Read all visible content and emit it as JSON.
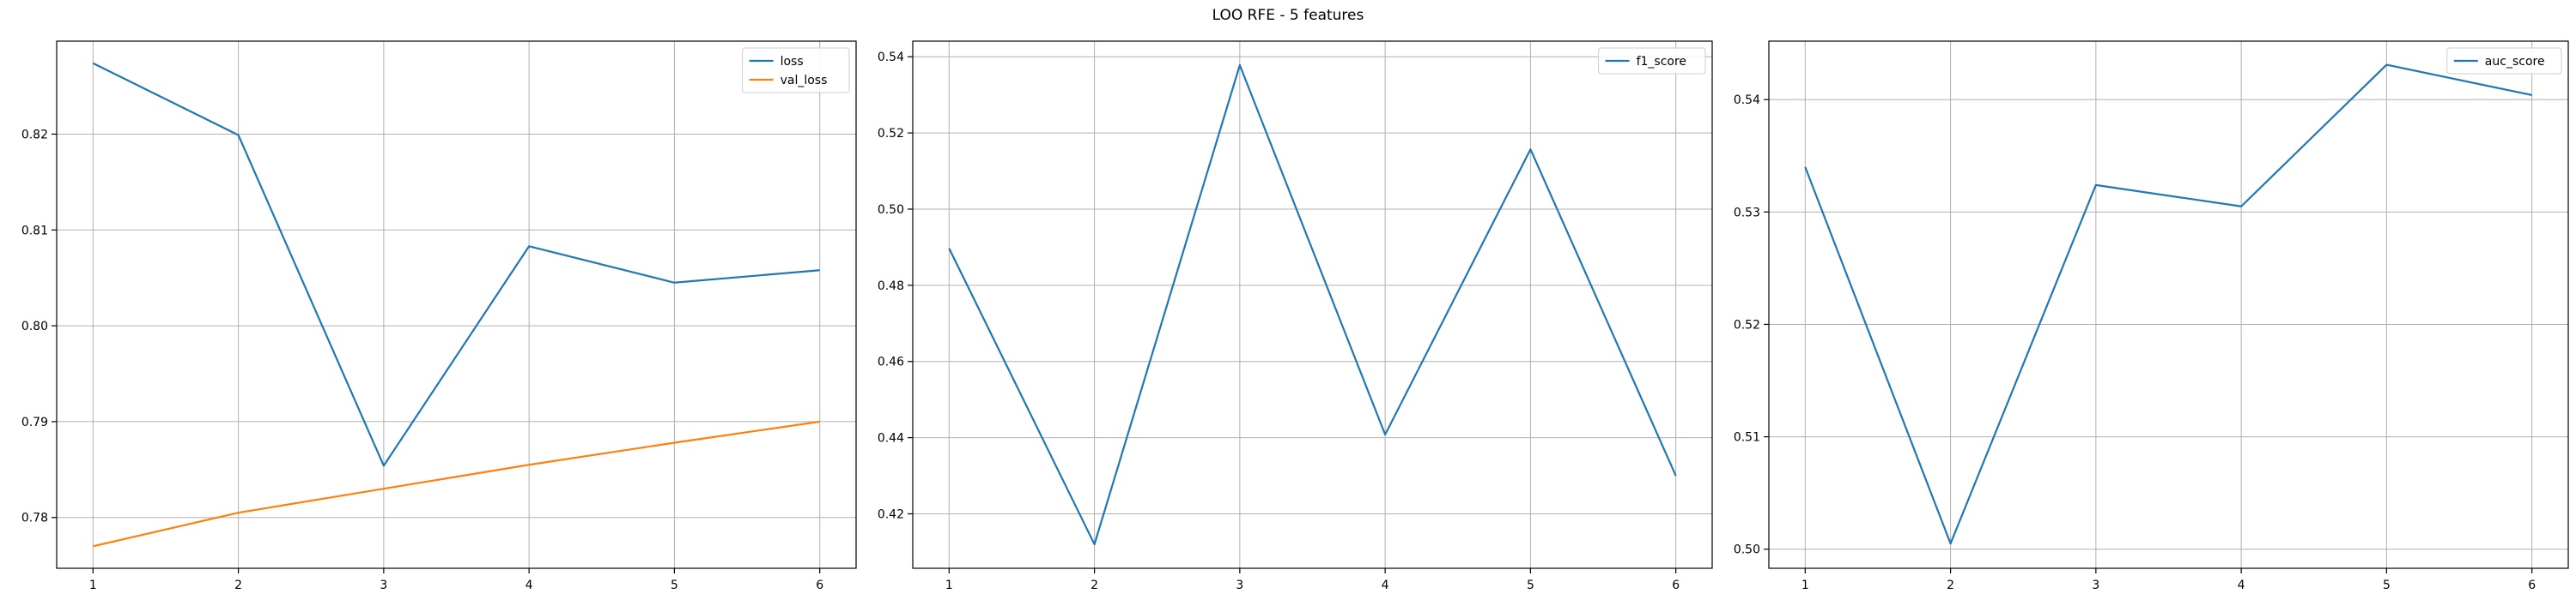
{
  "figure": {
    "title": "LOO RFE - 5 features"
  },
  "chart_data": [
    {
      "type": "line",
      "title": "",
      "xlabel": "",
      "ylabel": "",
      "x": [
        1,
        2,
        3,
        4,
        5,
        6
      ],
      "xticks": [
        1,
        2,
        3,
        4,
        5,
        6
      ],
      "xlim": [
        0.75,
        6.25
      ],
      "ylim": [
        0.7747,
        0.8297
      ],
      "yticks": [
        0.78,
        0.79,
        0.8,
        0.81,
        0.82
      ],
      "ytick_labels": [
        "0.78",
        "0.79",
        "0.80",
        "0.81",
        "0.82"
      ],
      "grid": true,
      "legend": "upper right",
      "series": [
        {
          "name": "loss",
          "color": "#1f77b4",
          "values": [
            0.8274,
            0.8199,
            0.7854,
            0.8083,
            0.8045,
            0.8058
          ]
        },
        {
          "name": "val_loss",
          "color": "#ff7f0e",
          "values": [
            0.777,
            0.7805,
            0.783,
            0.7855,
            0.7878,
            0.79
          ]
        }
      ]
    },
    {
      "type": "line",
      "title": "",
      "xlabel": "",
      "ylabel": "",
      "x": [
        1,
        2,
        3,
        4,
        5,
        6
      ],
      "xticks": [
        1,
        2,
        3,
        4,
        5,
        6
      ],
      "xlim": [
        0.75,
        6.25
      ],
      "ylim": [
        0.4057,
        0.5441
      ],
      "yticks": [
        0.42,
        0.44,
        0.46,
        0.48,
        0.5,
        0.52,
        0.54
      ],
      "ytick_labels": [
        "0.42",
        "0.44",
        "0.46",
        "0.48",
        "0.50",
        "0.52",
        "0.54"
      ],
      "grid": true,
      "legend": "upper right",
      "series": [
        {
          "name": "f1_score",
          "color": "#1f77b4",
          "values": [
            0.4897,
            0.412,
            0.5378,
            0.4408,
            0.5157,
            0.43
          ]
        }
      ]
    },
    {
      "type": "line",
      "title": "",
      "xlabel": "",
      "ylabel": "",
      "x": [
        1,
        2,
        3,
        4,
        5,
        6
      ],
      "xticks": [
        1,
        2,
        3,
        4,
        5,
        6
      ],
      "xlim": [
        0.75,
        6.25
      ],
      "ylim": [
        0.4983,
        0.5452
      ],
      "yticks": [
        0.5,
        0.51,
        0.52,
        0.53,
        0.54
      ],
      "ytick_labels": [
        "0.50",
        "0.51",
        "0.52",
        "0.53",
        "0.54"
      ],
      "grid": true,
      "legend": "upper right",
      "series": [
        {
          "name": "auc_score",
          "color": "#1f77b4",
          "values": [
            0.534,
            0.5005,
            0.5324,
            0.5305,
            0.5431,
            0.5404
          ]
        }
      ]
    }
  ]
}
